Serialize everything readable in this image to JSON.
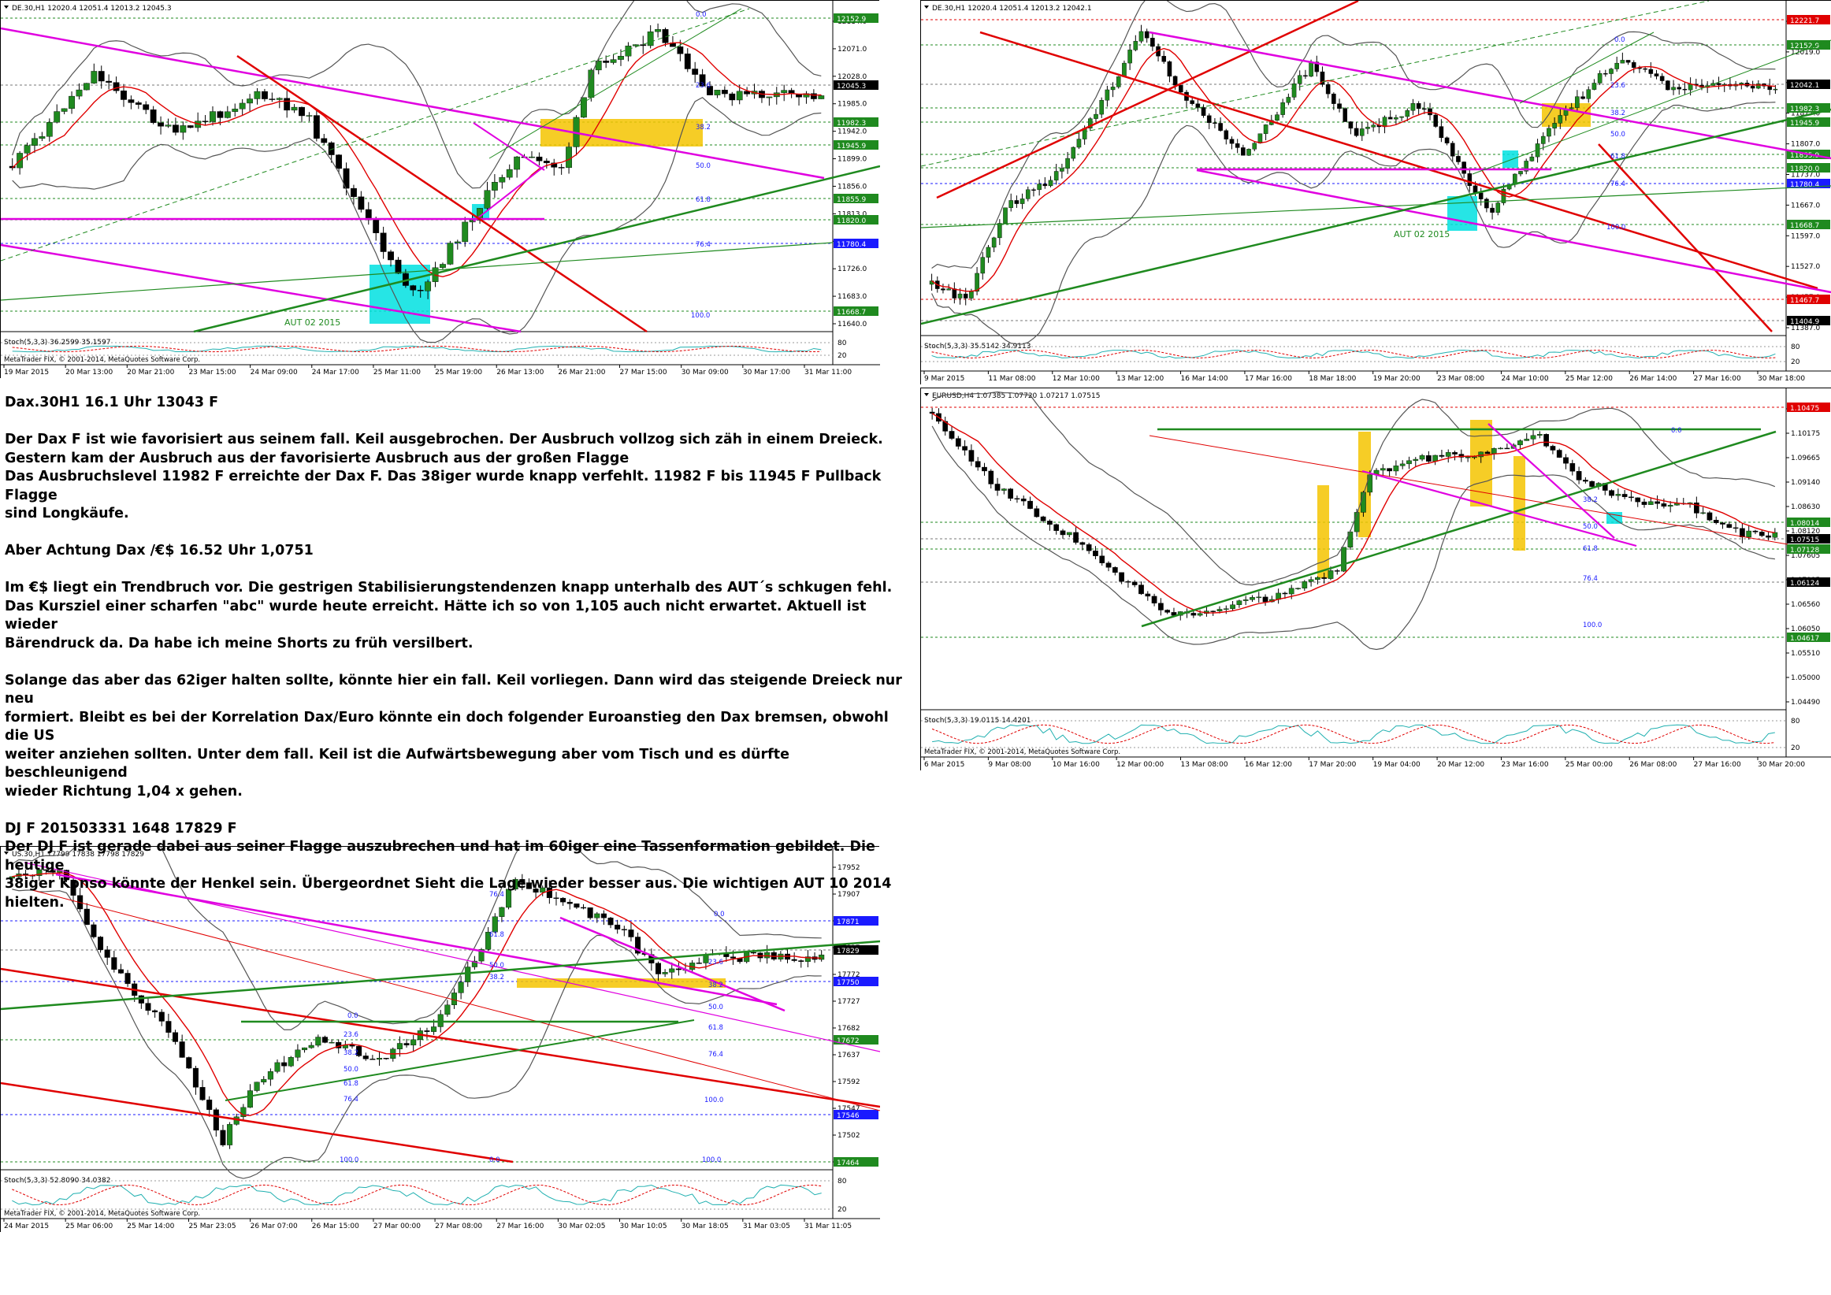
{
  "charts": [
    {
      "id": "dax1",
      "header": "DE.30,H1  12020.4 12051.4 12013.2 12045.3",
      "osc_label": "Stoch(5,3,3) 36.2599 35.1597",
      "copyright": "MetaTrader FIX, © 2001-2014, MetaQuotes Software Corp.",
      "y_ticks": [
        "12114.0",
        "12071.0",
        "12028.0",
        "11985.0",
        "11942.0",
        "11899.0",
        "11856.0",
        "11813.0",
        "11769.0",
        "11726.0",
        "11683.0",
        "11640.0"
      ],
      "price_tags": [
        {
          "label": "12152.9",
          "bg": "#1f8a1f"
        },
        {
          "label": "12045.3",
          "bg": "#000000"
        },
        {
          "label": "11982.3",
          "bg": "#1f8a1f"
        },
        {
          "label": "11945.9",
          "bg": "#1f8a1f"
        },
        {
          "label": "11855.9",
          "bg": "#1f8a1f"
        },
        {
          "label": "11820.0",
          "bg": "#1f8a1f"
        },
        {
          "label": "11780.4",
          "bg": "#1a1aff"
        },
        {
          "label": "11668.7",
          "bg": "#1f8a1f"
        }
      ],
      "osc_ticks": [
        "80",
        "20"
      ],
      "x_ticks": [
        "19 Mar 2015",
        "20 Mar 13:00",
        "20 Mar 21:00",
        "23 Mar 15:00",
        "24 Mar 09:00",
        "24 Mar 17:00",
        "25 Mar 11:00",
        "25 Mar 19:00",
        "26 Mar 13:00",
        "26 Mar 21:00",
        "27 Mar 15:00",
        "30 Mar 09:00",
        "30 Mar 17:00",
        "31 Mar 11:00"
      ],
      "fib_labels": [
        "0.0",
        "23.6",
        "38.2",
        "50.0",
        "61.8",
        "76.4",
        "100.0"
      ],
      "annotation": "AUT 02 2015"
    },
    {
      "id": "dax2",
      "header": "DE.30,H1  12020.4 12051.4 12013.2 12042.1",
      "osc_label": "Stoch(5,3,3) 35.5142 34.9113",
      "y_ticks": [
        "12089.0",
        "12019.0",
        "11948.0",
        "11877.0",
        "11807.0",
        "11737.0",
        "11667.0",
        "11597.0",
        "11527.0",
        "11457.0",
        "11387.0"
      ],
      "price_tags": [
        {
          "label": "12221.7",
          "bg": "#e00000"
        },
        {
          "label": "12152.9",
          "bg": "#1f8a1f"
        },
        {
          "label": "12042.1",
          "bg": "#000000"
        },
        {
          "label": "11982.3",
          "bg": "#1f8a1f"
        },
        {
          "label": "11945.9",
          "bg": "#1f8a1f"
        },
        {
          "label": "11855.9",
          "bg": "#1f8a1f"
        },
        {
          "label": "11820.0",
          "bg": "#1f8a1f"
        },
        {
          "label": "11780.4",
          "bg": "#1a1aff"
        },
        {
          "label": "11668.7",
          "bg": "#1f8a1f"
        },
        {
          "label": "11467.7",
          "bg": "#e00000"
        },
        {
          "label": "11404.9",
          "bg": "#000000"
        }
      ],
      "osc_ticks": [
        "80",
        "20"
      ],
      "x_ticks": [
        "9 Mar 2015",
        "11 Mar 08:00",
        "12 Mar 10:00",
        "13 Mar 12:00",
        "16 Mar 14:00",
        "17 Mar 16:00",
        "18 Mar 18:00",
        "19 Mar 20:00",
        "23 Mar 08:00",
        "24 Mar 10:00",
        "25 Mar 12:00",
        "26 Mar 14:00",
        "27 Mar 16:00",
        "30 Mar 18:00"
      ],
      "fib_labels": [
        "0.0",
        "23.6",
        "38.2",
        "50.0",
        "61.8",
        "76.4",
        "100.0"
      ],
      "annotation": "AUT 02 2015"
    },
    {
      "id": "eurusd",
      "header": "EURUSD,H4  1.07385 1.07720 1.07217 1.07515",
      "osc_label": "Stoch(5,3,3) 19.0115 14.4201",
      "copyright": "MetaTrader FIX, © 2001-2014, MetaQuotes Software Corp.",
      "y_ticks": [
        "1.10685",
        "1.10175",
        "1.09665",
        "1.09140",
        "1.08630",
        "1.08120",
        "1.07605",
        "1.07095",
        "1.06560",
        "1.06050",
        "1.05510",
        "1.05000",
        "1.04490"
      ],
      "price_tags": [
        {
          "label": "1.10475",
          "bg": "#e00000"
        },
        {
          "label": "1.08014",
          "bg": "#1f8a1f"
        },
        {
          "label": "1.07515",
          "bg": "#000000"
        },
        {
          "label": "1.07128",
          "bg": "#1f8a1f"
        },
        {
          "label": "1.06124",
          "bg": "#000000"
        },
        {
          "label": "1.04617",
          "bg": "#1f8a1f"
        }
      ],
      "osc_ticks": [
        "80",
        "20"
      ],
      "x_ticks": [
        "6 Mar 2015",
        "9 Mar 08:00",
        "10 Mar 16:00",
        "12 Mar 00:00",
        "13 Mar 08:00",
        "16 Mar 12:00",
        "17 Mar 20:00",
        "19 Mar 04:00",
        "20 Mar 12:00",
        "23 Mar 16:00",
        "25 Mar 00:00",
        "26 Mar 08:00",
        "27 Mar 16:00",
        "30 Mar 20:00"
      ],
      "fib_labels": [
        "0.0",
        "38.2",
        "50.0",
        "61.8",
        "76.4",
        "100.0"
      ]
    },
    {
      "id": "dj",
      "header": "US.30,H1  17799 17838 17798 17829",
      "osc_label": "Stoch(5,3,3) 52.8090 34.0382",
      "copyright": "MetaTrader FIX, © 2001-2014, MetaQuotes Software Corp.",
      "y_ticks": [
        "17952",
        "17907",
        "17862",
        "17817",
        "17772",
        "17727",
        "17682",
        "17637",
        "17592",
        "17547",
        "17502",
        "17457"
      ],
      "price_tags": [
        {
          "label": "17871",
          "bg": "#1a1aff"
        },
        {
          "label": "17829",
          "bg": "#000000"
        },
        {
          "label": "17750",
          "bg": "#1a1aff"
        },
        {
          "label": "17672",
          "bg": "#1f8a1f"
        },
        {
          "label": "17546",
          "bg": "#1a1aff"
        },
        {
          "label": "17464",
          "bg": "#1f8a1f"
        }
      ],
      "osc_ticks": [
        "80",
        "20"
      ],
      "x_ticks": [
        "24 Mar 2015",
        "25 Mar 06:00",
        "25 Mar 14:00",
        "25 Mar 23:05",
        "26 Mar 07:00",
        "26 Mar 15:00",
        "27 Mar 00:00",
        "27 Mar 08:00",
        "27 Mar 16:00",
        "30 Mar 02:05",
        "30 Mar 10:05",
        "30 Mar 18:05",
        "31 Mar 03:05",
        "31 Mar 11:05"
      ],
      "fib_labels_top": [
        "76.4",
        "61.8",
        "50.0",
        "38.2",
        "23.6",
        "0.0"
      ],
      "fib_labels_right": [
        "0.0",
        "23.6",
        "38.2",
        "50.0",
        "61.8",
        "76.4",
        "100.0"
      ],
      "fib_labels_low": [
        "0.0",
        "23.6",
        "38.2",
        "50.0",
        "61.8",
        "76.4",
        "100.0"
      ],
      "extra_labels": [
        "0.0",
        "100.0"
      ]
    }
  ],
  "commentary": [
    "Dax.30H1 16.1 Uhr 13043 F",
    "",
    "Der Dax F ist wie favorisiert aus seinem fall. Keil ausgebrochen. Der Ausbruch vollzog sich zäh in einem Dreieck.",
    "Gestern kam der Ausbruch aus der favorisierte Ausbruch aus der großen Flagge",
    "Das Ausbruchslevel 11982 F erreichte der Dax F. Das 38iger wurde knapp verfehlt. 11982 F bis 11945 F Pullback Flagge",
    "sind Longkäufe.",
    "",
    "Aber Achtung Dax /€$ 16.52 Uhr 1,0751",
    "",
    "Im €$ liegt ein Trendbruch vor. Die gestrigen Stabilisierungstendenzen knapp unterhalb des AUT´s schkugen fehl.",
    "Das Kursziel einer scharfen \"abc\" wurde heute erreicht. Hätte ich so von 1,105 auch nicht erwartet. Aktuell ist wieder",
    "Bärendruck da. Da habe ich meine Shorts zu früh versilbert.",
    "",
    "Solange das aber das 62iger halten sollte, könnte hier ein fall. Keil vorliegen. Dann wird das steigende Dreieck nur neu",
    "formiert. Bleibt es bei der Korrelation Dax/Euro  könnte ein doch folgender Euroanstieg den Dax bremsen, obwohl die US",
    "weiter anziehen sollten. Unter dem fall. Keil ist die Aufwärtsbewegung aber vom Tisch und es dürfte  beschleunigend",
    "wieder Richtung 1,04 x gehen.",
    "",
    "DJ F 201503331 1648 17829 F",
    "Der DJ F ist gerade dabei aus seiner Flagge auszubrechen und hat im 60iger eine Tassenformation gebildet. Die heutige",
    "38iger Konso könnte der Henkel sein. Übergeordnet Sieht die Lage wieder besser aus. Die wichtigen AUT 10 2014",
    "hielten."
  ],
  "colors": {
    "up": "#1f8a1f",
    "down": "#000000",
    "ma": "#e00000",
    "band": "#555555",
    "fib": "#1a1aff",
    "magenta": "#e000e0",
    "trend_red": "#e00000",
    "trend_green": "#1f8a1f",
    "yellow": "#f5c400",
    "cyan": "#00e0e0"
  }
}
